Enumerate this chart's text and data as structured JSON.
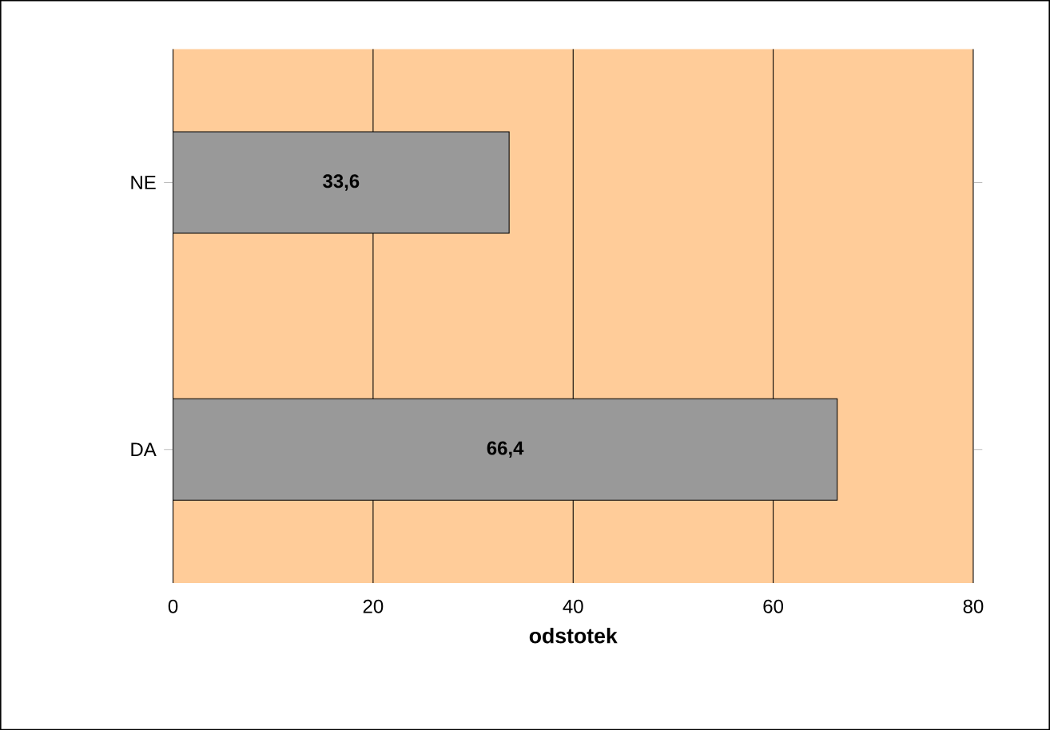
{
  "chart_data": {
    "type": "bar",
    "orientation": "horizontal",
    "categories": [
      "NE",
      "DA"
    ],
    "values": [
      33.6,
      66.4
    ],
    "color": "#999999",
    "value_labels": [
      "33,6",
      "66,4"
    ],
    "xlim": [
      0,
      80
    ],
    "xticks": [
      0,
      20,
      40,
      60,
      80
    ],
    "xlabel": "odstotek",
    "grid": "x"
  }
}
